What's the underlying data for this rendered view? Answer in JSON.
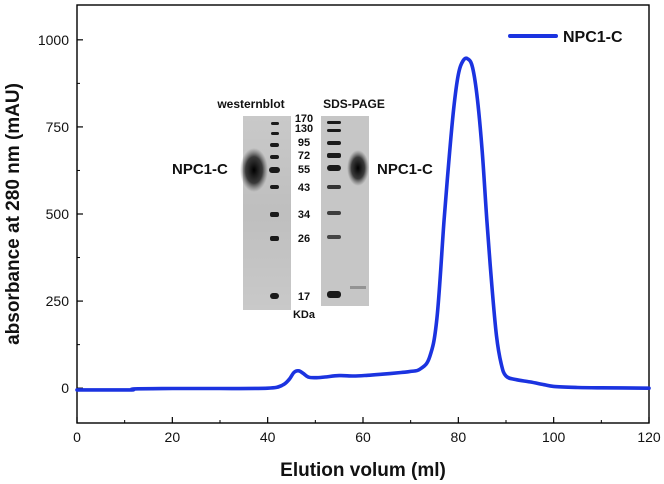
{
  "chart_data": {
    "type": "line",
    "title": "",
    "xlabel": "Elution volum (ml)",
    "ylabel": "absorbance at 280 nm (mAU)",
    "xlim": [
      0,
      120
    ],
    "ylim": [
      -100,
      1100
    ],
    "x_ticks": [
      0,
      20,
      40,
      60,
      80,
      100,
      120
    ],
    "y_ticks": [
      0,
      250,
      500,
      750,
      1000
    ],
    "grid": false,
    "legend": {
      "position": "top-right",
      "entries": [
        "NPC1-C"
      ]
    },
    "series": [
      {
        "name": "NPC1-C",
        "color": "#1b33e0",
        "x": [
          0,
          5,
          11.5,
          12,
          20,
          30,
          40,
          43,
          44.5,
          45.5,
          46.5,
          47.5,
          48.5,
          50,
          52,
          55,
          58,
          61,
          64,
          68,
          70,
          72,
          74,
          75.5,
          77,
          78,
          79,
          80,
          81,
          82,
          83,
          84,
          85,
          86,
          87,
          88,
          89,
          90,
          92,
          95,
          98,
          100,
          105,
          110,
          120
        ],
        "y": [
          -5,
          -5,
          -5,
          -2,
          -1,
          -1,
          0,
          8,
          25,
          45,
          50,
          42,
          32,
          30,
          32,
          36,
          35,
          37,
          40,
          45,
          48,
          55,
          90,
          200,
          480,
          650,
          800,
          900,
          940,
          945,
          920,
          830,
          680,
          480,
          300,
          150,
          70,
          35,
          25,
          18,
          10,
          5,
          2,
          1,
          0
        ]
      }
    ],
    "annotations": [
      "westernblot",
      "SDS-PAGE",
      "NPC1-C",
      "NPC1-C"
    ],
    "inset": {
      "westernblot_label": "westernblot",
      "sds_label": "SDS-PAGE",
      "left_band_label": "NPC1-C",
      "right_band_label": "NPC1-C",
      "markers": [
        "170",
        "130",
        "95",
        "72",
        "55",
        "43",
        "34",
        "26",
        "17"
      ],
      "unit": "KDa"
    }
  }
}
